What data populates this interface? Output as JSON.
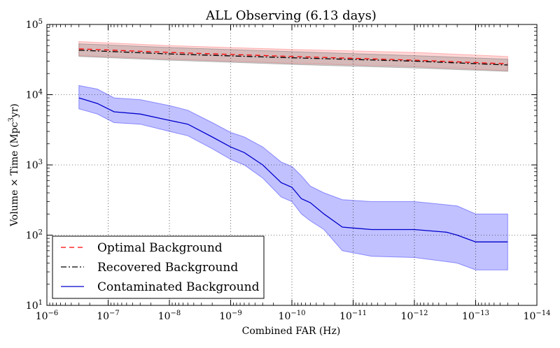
{
  "chart_data": {
    "type": "line",
    "title": "ALL Observing (6.13 days)",
    "xlabel": "Combined FAR (Hz)",
    "ylabel": "Volume × Time (Mpc³yr)",
    "xscale": "log",
    "yscale": "log",
    "xaxis_inverted": true,
    "xlim": [
      1e-06,
      1e-14
    ],
    "ylim": [
      10,
      100000
    ],
    "grid": true,
    "legend_position": "lower-left",
    "x_ticks": [
      {
        "value": 1e-06,
        "base": "10",
        "exp": "−6"
      },
      {
        "value": 1e-07,
        "base": "10",
        "exp": "−7"
      },
      {
        "value": 1e-08,
        "base": "10",
        "exp": "−8"
      },
      {
        "value": 1e-09,
        "base": "10",
        "exp": "−9"
      },
      {
        "value": 1e-10,
        "base": "10",
        "exp": "−10"
      },
      {
        "value": 1e-11,
        "base": "10",
        "exp": "−11"
      },
      {
        "value": 1e-12,
        "base": "10",
        "exp": "−12"
      },
      {
        "value": 1e-13,
        "base": "10",
        "exp": "−13"
      },
      {
        "value": 1e-14,
        "base": "10",
        "exp": "−14"
      }
    ],
    "y_ticks": [
      {
        "value": 10,
        "base": "10",
        "exp": "1"
      },
      {
        "value": 100,
        "base": "10",
        "exp": "2"
      },
      {
        "value": 1000,
        "base": "10",
        "exp": "3"
      },
      {
        "value": 10000,
        "base": "10",
        "exp": "4"
      },
      {
        "value": 100000,
        "base": "10",
        "exp": "5"
      }
    ],
    "series": [
      {
        "name": "Optimal Background",
        "color": "#ff0000",
        "band_color": "#ff7777",
        "dash": "7,5",
        "x": [
          3e-07,
          1e-08,
          1e-10,
          1e-12,
          3e-14
        ],
        "values": [
          45000,
          40000,
          35000,
          31000,
          27500
        ],
        "band_upper": [
          57000,
          50000,
          44000,
          40000,
          35000
        ],
        "band_lower": [
          36000,
          32000,
          28000,
          25000,
          22000
        ]
      },
      {
        "name": "Recovered Background",
        "color": "#000000",
        "band_color": "#777777",
        "dash": "8,3,2,3",
        "x": [
          3e-07,
          1e-08,
          1e-10,
          1e-12,
          3e-14
        ],
        "values": [
          43000,
          38000,
          33500,
          30000,
          26500
        ],
        "band_upper": [
          53000,
          47000,
          41000,
          36000,
          32000
        ],
        "band_lower": [
          35000,
          31000,
          27000,
          24000,
          21500
        ]
      },
      {
        "name": "Contaminated Background",
        "color": "#0000cc",
        "band_color": "#3333ff",
        "dash": "",
        "x": [
          3e-07,
          1.5e-07,
          8e-08,
          3e-08,
          1e-08,
          5e-09,
          2e-09,
          1e-09,
          6e-10,
          3e-10,
          1.5e-10,
          1e-10,
          7e-11,
          5e-11,
          3e-11,
          1.5e-11,
          5e-12,
          1e-12,
          3e-13,
          2e-13,
          1e-13,
          3e-14
        ],
        "values": [
          9000,
          7500,
          5700,
          5300,
          4300,
          3800,
          2500,
          1800,
          1500,
          1000,
          560,
          480,
          330,
          290,
          200,
          130,
          120,
          120,
          110,
          100,
          80,
          80
        ],
        "band_upper": [
          13500,
          12000,
          9000,
          8500,
          7000,
          6000,
          4000,
          2900,
          2500,
          1800,
          1100,
          950,
          700,
          500,
          400,
          320,
          300,
          300,
          270,
          260,
          200,
          200
        ],
        "band_lower": [
          6300,
          5300,
          4000,
          3800,
          3000,
          2600,
          1700,
          1200,
          1000,
          650,
          350,
          300,
          200,
          160,
          120,
          60,
          50,
          48,
          42,
          40,
          32,
          32
        ]
      }
    ]
  }
}
